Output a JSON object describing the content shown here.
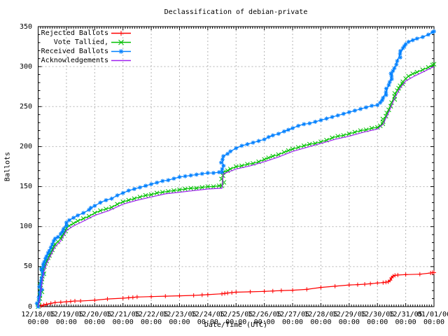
{
  "chart_data": {
    "type": "line",
    "title": "Declassification of debian-private",
    "xlabel": "Date/Time (UTC)",
    "ylabel": "Ballots",
    "xlim_days": [
      0,
      14
    ],
    "ylim": [
      0,
      350
    ],
    "grid": true,
    "legend_position": "top-left-inside",
    "background_color": "#ffffff",
    "grid_color": "#b4b4b4",
    "border_color": "#000000",
    "yticks": [
      0,
      50,
      100,
      150,
      200,
      250,
      300,
      350
    ],
    "xticks": [
      {
        "date": "12/18/05",
        "time": "00:00"
      },
      {
        "date": "12/19/05",
        "time": "00:00"
      },
      {
        "date": "12/20/05",
        "time": "00:00"
      },
      {
        "date": "12/21/05",
        "time": "00:00"
      },
      {
        "date": "12/22/05",
        "time": "00:00"
      },
      {
        "date": "12/23/05",
        "time": "00:00"
      },
      {
        "date": "12/24/05",
        "time": "00:00"
      },
      {
        "date": "12/25/05",
        "time": "00:00"
      },
      {
        "date": "12/26/05",
        "time": "00:00"
      },
      {
        "date": "12/27/05",
        "time": "00:00"
      },
      {
        "date": "12/28/05",
        "time": "00:00"
      },
      {
        "date": "12/29/05",
        "time": "00:00"
      },
      {
        "date": "12/30/05",
        "time": "00:00"
      },
      {
        "date": "12/31/05",
        "time": "00:00"
      },
      {
        "date": "01/01/06",
        "time": "00:00"
      }
    ],
    "series": [
      {
        "name": "Rejected Ballots",
        "color": "#ff0000",
        "marker": "plus",
        "points": [
          [
            0,
            0
          ],
          [
            0.1,
            1
          ],
          [
            0.2,
            2
          ],
          [
            0.3,
            3
          ],
          [
            0.45,
            4
          ],
          [
            0.6,
            5
          ],
          [
            0.8,
            5.5
          ],
          [
            1.0,
            6
          ],
          [
            1.15,
            6.5
          ],
          [
            1.3,
            7
          ],
          [
            1.5,
            7
          ],
          [
            2.0,
            8
          ],
          [
            2.45,
            9.5
          ],
          [
            3.0,
            10.5
          ],
          [
            3.2,
            11
          ],
          [
            3.35,
            11.5
          ],
          [
            3.5,
            12
          ],
          [
            4.0,
            12.5
          ],
          [
            4.5,
            13
          ],
          [
            5.0,
            13.5
          ],
          [
            5.5,
            14
          ],
          [
            5.8,
            14.5
          ],
          [
            6.0,
            15
          ],
          [
            6.5,
            16
          ],
          [
            6.6,
            16.5
          ],
          [
            6.7,
            17
          ],
          [
            6.85,
            17.5
          ],
          [
            7.0,
            18
          ],
          [
            7.5,
            18.5
          ],
          [
            8.0,
            19
          ],
          [
            8.3,
            19.5
          ],
          [
            8.6,
            20
          ],
          [
            9.0,
            20.5
          ],
          [
            9.5,
            21.5
          ],
          [
            10.0,
            24
          ],
          [
            10.5,
            25.5
          ],
          [
            11.0,
            27
          ],
          [
            11.3,
            27.5
          ],
          [
            11.55,
            28
          ],
          [
            11.75,
            28.5
          ],
          [
            12.0,
            29.5
          ],
          [
            12.2,
            30
          ],
          [
            12.3,
            30.5
          ],
          [
            12.38,
            31
          ],
          [
            12.45,
            33
          ],
          [
            12.5,
            36
          ],
          [
            12.55,
            38
          ],
          [
            12.62,
            39
          ],
          [
            12.72,
            39.5
          ],
          [
            13.0,
            40
          ],
          [
            13.5,
            40.5
          ],
          [
            13.88,
            42
          ],
          [
            13.95,
            42.5
          ],
          [
            14.0,
            42.5
          ]
        ]
      },
      {
        "name": "Vote Tallied,",
        "color": "#00c000",
        "marker": "cross",
        "points": [
          [
            0,
            0
          ],
          [
            0.03,
            6
          ],
          [
            0.06,
            14
          ],
          [
            0.09,
            23
          ],
          [
            0.12,
            31
          ],
          [
            0.15,
            38
          ],
          [
            0.18,
            44
          ],
          [
            0.22,
            50
          ],
          [
            0.26,
            54
          ],
          [
            0.3,
            57
          ],
          [
            0.35,
            61
          ],
          [
            0.4,
            64
          ],
          [
            0.45,
            68
          ],
          [
            0.5,
            71
          ],
          [
            0.55,
            75
          ],
          [
            0.6,
            78
          ],
          [
            0.7,
            81
          ],
          [
            0.8,
            85
          ],
          [
            0.9,
            91
          ],
          [
            1.0,
            98
          ],
          [
            1.1,
            101
          ],
          [
            1.25,
            104
          ],
          [
            1.4,
            107
          ],
          [
            1.6,
            110
          ],
          [
            1.8,
            113
          ],
          [
            2.0,
            117
          ],
          [
            2.2,
            120
          ],
          [
            2.4,
            122
          ],
          [
            2.6,
            124
          ],
          [
            2.8,
            128
          ],
          [
            3.0,
            131
          ],
          [
            3.2,
            133
          ],
          [
            3.4,
            135
          ],
          [
            3.6,
            137
          ],
          [
            3.8,
            139
          ],
          [
            4.0,
            140
          ],
          [
            4.2,
            142
          ],
          [
            4.4,
            143
          ],
          [
            4.6,
            144
          ],
          [
            4.8,
            145
          ],
          [
            5.0,
            146
          ],
          [
            5.2,
            147
          ],
          [
            5.4,
            148
          ],
          [
            5.6,
            148
          ],
          [
            5.8,
            149
          ],
          [
            6.0,
            150
          ],
          [
            6.2,
            150
          ],
          [
            6.4,
            151
          ],
          [
            6.5,
            151
          ],
          [
            6.55,
            168
          ],
          [
            6.7,
            170
          ],
          [
            6.8,
            172
          ],
          [
            7.0,
            175
          ],
          [
            7.2,
            176
          ],
          [
            7.4,
            178
          ],
          [
            7.6,
            179
          ],
          [
            7.8,
            181
          ],
          [
            8.0,
            184
          ],
          [
            8.15,
            186
          ],
          [
            8.3,
            188
          ],
          [
            8.5,
            190
          ],
          [
            8.7,
            193
          ],
          [
            8.85,
            195
          ],
          [
            9.0,
            197
          ],
          [
            9.2,
            199
          ],
          [
            9.4,
            201
          ],
          [
            9.6,
            203
          ],
          [
            9.8,
            204
          ],
          [
            10.0,
            206
          ],
          [
            10.2,
            208
          ],
          [
            10.4,
            211
          ],
          [
            10.6,
            213
          ],
          [
            10.8,
            214
          ],
          [
            11.0,
            216
          ],
          [
            11.2,
            218
          ],
          [
            11.4,
            220
          ],
          [
            11.6,
            221
          ],
          [
            11.8,
            223
          ],
          [
            12.0,
            224
          ],
          [
            12.1,
            226
          ],
          [
            12.2,
            231
          ],
          [
            12.3,
            238
          ],
          [
            12.4,
            246
          ],
          [
            12.5,
            255
          ],
          [
            12.6,
            263
          ],
          [
            12.7,
            270
          ],
          [
            12.8,
            276
          ],
          [
            12.9,
            281
          ],
          [
            13.0,
            285
          ],
          [
            13.1,
            288
          ],
          [
            13.25,
            291
          ],
          [
            13.4,
            293
          ],
          [
            13.6,
            296
          ],
          [
            13.8,
            299
          ],
          [
            13.95,
            302
          ],
          [
            14.0,
            303
          ]
        ]
      },
      {
        "name": "Received Ballots",
        "color": "#0080ff",
        "marker": "asterisk",
        "points": [
          [
            0,
            0
          ],
          [
            0.03,
            8
          ],
          [
            0.06,
            18
          ],
          [
            0.09,
            28
          ],
          [
            0.12,
            36
          ],
          [
            0.15,
            44
          ],
          [
            0.18,
            50
          ],
          [
            0.22,
            56
          ],
          [
            0.26,
            60
          ],
          [
            0.3,
            63
          ],
          [
            0.35,
            67
          ],
          [
            0.4,
            70
          ],
          [
            0.45,
            74
          ],
          [
            0.5,
            78
          ],
          [
            0.55,
            82
          ],
          [
            0.6,
            85
          ],
          [
            0.7,
            87
          ],
          [
            0.8,
            91
          ],
          [
            0.9,
            97
          ],
          [
            1.0,
            105
          ],
          [
            1.1,
            108
          ],
          [
            1.25,
            111
          ],
          [
            1.4,
            114
          ],
          [
            1.6,
            117
          ],
          [
            1.8,
            121
          ],
          [
            2.0,
            126
          ],
          [
            2.2,
            130
          ],
          [
            2.4,
            133
          ],
          [
            2.6,
            135
          ],
          [
            2.8,
            139
          ],
          [
            3.0,
            142
          ],
          [
            3.2,
            145
          ],
          [
            3.4,
            147
          ],
          [
            3.6,
            149
          ],
          [
            3.8,
            151
          ],
          [
            4.0,
            153
          ],
          [
            4.2,
            155
          ],
          [
            4.4,
            157
          ],
          [
            4.6,
            158
          ],
          [
            4.8,
            160
          ],
          [
            5.0,
            162
          ],
          [
            5.2,
            163
          ],
          [
            5.4,
            164
          ],
          [
            5.6,
            165
          ],
          [
            5.8,
            166
          ],
          [
            6.0,
            167
          ],
          [
            6.2,
            167
          ],
          [
            6.4,
            168
          ],
          [
            6.5,
            168
          ],
          [
            6.55,
            188
          ],
          [
            6.7,
            191
          ],
          [
            6.8,
            194
          ],
          [
            7.0,
            198
          ],
          [
            7.2,
            201
          ],
          [
            7.4,
            203
          ],
          [
            7.6,
            205
          ],
          [
            7.8,
            207
          ],
          [
            8.0,
            209
          ],
          [
            8.15,
            212
          ],
          [
            8.3,
            214
          ],
          [
            8.5,
            216
          ],
          [
            8.7,
            219
          ],
          [
            8.85,
            221
          ],
          [
            9.0,
            223
          ],
          [
            9.2,
            226
          ],
          [
            9.4,
            228
          ],
          [
            9.6,
            229
          ],
          [
            9.8,
            231
          ],
          [
            10.0,
            233
          ],
          [
            10.2,
            235
          ],
          [
            10.4,
            237
          ],
          [
            10.6,
            239
          ],
          [
            10.8,
            241
          ],
          [
            11.0,
            243
          ],
          [
            11.2,
            245
          ],
          [
            11.4,
            247
          ],
          [
            11.6,
            249
          ],
          [
            11.8,
            251
          ],
          [
            12.0,
            252
          ],
          [
            12.1,
            255
          ],
          [
            12.2,
            261
          ],
          [
            12.3,
            268
          ],
          [
            12.4,
            277
          ],
          [
            12.5,
            288
          ],
          [
            12.6,
            298
          ],
          [
            12.7,
            307
          ],
          [
            12.8,
            316
          ],
          [
            12.9,
            323
          ],
          [
            13.0,
            328
          ],
          [
            13.1,
            331
          ],
          [
            13.25,
            333
          ],
          [
            13.4,
            335
          ],
          [
            13.6,
            337
          ],
          [
            13.8,
            340
          ],
          [
            13.95,
            343
          ],
          [
            14.0,
            344
          ]
        ]
      },
      {
        "name": "Acknowledgements",
        "color": "#a020f0",
        "marker": "none",
        "points": [
          [
            0,
            0
          ],
          [
            0.05,
            8
          ],
          [
            0.1,
            20
          ],
          [
            0.15,
            34
          ],
          [
            0.2,
            43
          ],
          [
            0.3,
            54
          ],
          [
            0.4,
            61
          ],
          [
            0.5,
            68
          ],
          [
            0.6,
            75
          ],
          [
            0.8,
            82
          ],
          [
            1.0,
            95
          ],
          [
            1.25,
            101
          ],
          [
            1.5,
            105
          ],
          [
            2.0,
            114
          ],
          [
            2.5,
            120
          ],
          [
            3.0,
            128
          ],
          [
            3.5,
            133
          ],
          [
            4.0,
            137
          ],
          [
            4.5,
            141
          ],
          [
            5.0,
            143
          ],
          [
            5.5,
            145
          ],
          [
            6.0,
            147
          ],
          [
            6.5,
            148
          ],
          [
            6.55,
            166
          ],
          [
            7.0,
            172
          ],
          [
            7.5,
            176
          ],
          [
            8.0,
            181
          ],
          [
            8.5,
            187
          ],
          [
            9.0,
            194
          ],
          [
            9.5,
            199
          ],
          [
            10.0,
            204
          ],
          [
            10.5,
            209
          ],
          [
            11.0,
            213
          ],
          [
            11.5,
            218
          ],
          [
            12.0,
            222
          ],
          [
            12.2,
            228
          ],
          [
            12.4,
            243
          ],
          [
            12.6,
            260
          ],
          [
            12.8,
            273
          ],
          [
            13.0,
            282
          ],
          [
            13.3,
            288
          ],
          [
            13.6,
            293
          ],
          [
            14.0,
            300
          ]
        ]
      }
    ]
  }
}
